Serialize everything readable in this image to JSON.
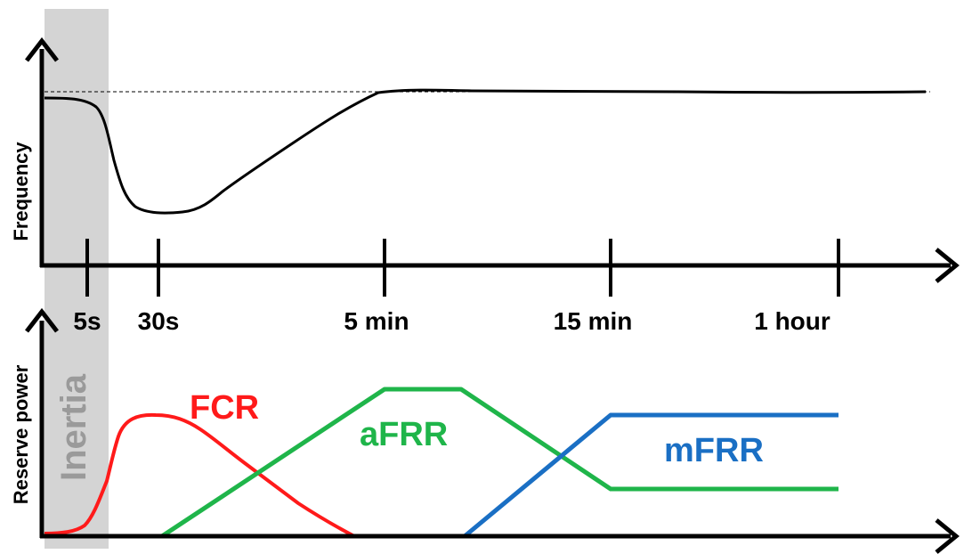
{
  "labels": {
    "frequency_axis": "Frequency",
    "reserve_axis": "Reserve power",
    "inertia": "Inertia",
    "fcr": "FCR",
    "afrr": "aFRR",
    "mfrr": "mFRR"
  },
  "time_ticks": [
    "5s",
    "30s",
    "5 min",
    "15 min",
    "1 hour"
  ],
  "colors": {
    "axis": "#000000",
    "frequency": "#000000",
    "inertia_band": "#d4d4d4",
    "inertia_text": "#9a9a9a",
    "fcr": "#ff1a1a",
    "afrr": "#1fb54a",
    "mfrr": "#1a6fc4"
  }
}
